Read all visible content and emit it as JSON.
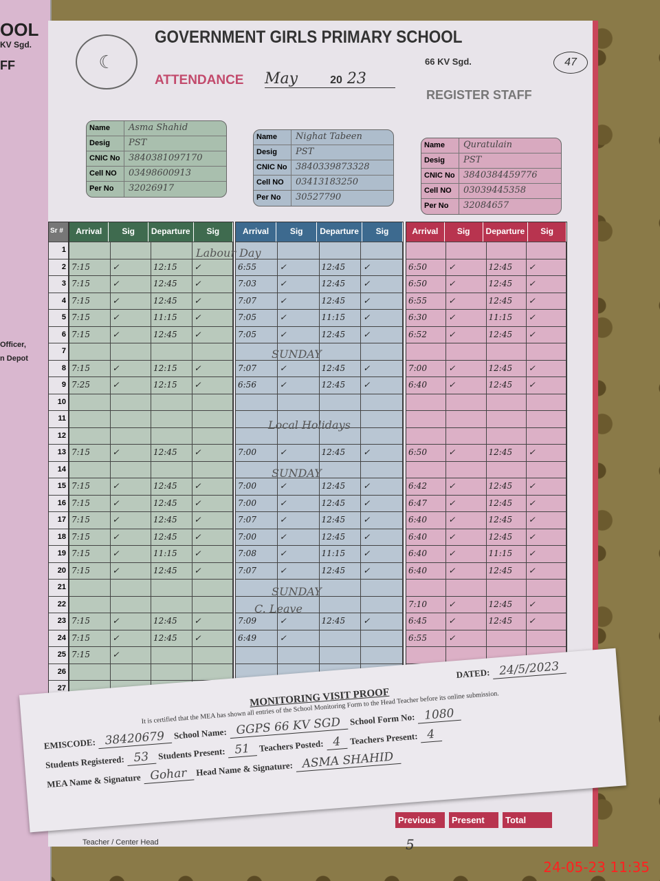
{
  "left_page": {
    "fragments": [
      "OOL",
      "KV Sgd.",
      "FF",
      "Officer,",
      "n Depot"
    ]
  },
  "header": {
    "title": "GOVERNMENT  GIRLS PRIMARY  SCHOOL",
    "subtitle": "66 KV Sgd.",
    "attendance_label": "ATTENDANCE",
    "month": "May",
    "year_prefix": "20",
    "year_suffix": "23",
    "register_label": "REGISTER STAFF",
    "page_number": "47"
  },
  "card_labels": [
    "Name",
    "Desig",
    "CNIC No",
    "Cell NO",
    "Per No"
  ],
  "staff": [
    {
      "name": "Asma Shahid",
      "desig": "PST",
      "cnic": "3840381097170",
      "cell": "03498600913",
      "per_no": "32026917",
      "color": "#a9bfae"
    },
    {
      "name": "Nighat Tabeen",
      "desig": "PST",
      "cnic": "3840339873328",
      "cell": "03413183250",
      "per_no": "30527790",
      "color": "#aebdcc"
    },
    {
      "name": "Quratulain",
      "desig": "PST",
      "cnic": "3840384459776",
      "cell": "03039445358",
      "per_no": "32084657",
      "color": "#d8a9bf"
    }
  ],
  "table": {
    "sr_header": "Sr #",
    "columns": [
      "Arrival",
      "Sig",
      "Departure",
      "Sig"
    ],
    "header_colors": [
      "#3f6b4f",
      "#3d6a8f",
      "#b8344f"
    ]
  },
  "attendance": [
    {
      "2": [
        "7:15",
        "12:15"
      ],
      "3": [
        "7:15",
        "12:45"
      ],
      "4": [
        "7:15",
        "12:45"
      ],
      "5": [
        "7:15",
        "11:15"
      ],
      "6": [
        "7:15",
        "12:45"
      ],
      "8": [
        "7:15",
        "12:15"
      ],
      "9": [
        "7:25",
        "12:15"
      ],
      "13": [
        "7:15",
        "12:45"
      ],
      "15": [
        "7:15",
        "12:45"
      ],
      "16": [
        "7:15",
        "12:45"
      ],
      "17": [
        "7:15",
        "12:45"
      ],
      "18": [
        "7:15",
        "12:45"
      ],
      "19": [
        "7:15",
        "11:15"
      ],
      "20": [
        "7:15",
        "12:45"
      ],
      "23": [
        "7:15",
        "12:45"
      ],
      "24": [
        "7:15",
        "12:45"
      ],
      "25": [
        "7:15",
        ""
      ]
    },
    {
      "2": [
        "6:55",
        "12:45"
      ],
      "3": [
        "7:03",
        "12:45"
      ],
      "4": [
        "7:07",
        "12:45"
      ],
      "5": [
        "7:05",
        "11:15"
      ],
      "6": [
        "7:05",
        "12:45"
      ],
      "8": [
        "7:07",
        "12:45"
      ],
      "9": [
        "6:56",
        "12:45"
      ],
      "13": [
        "7:00",
        "12:45"
      ],
      "15": [
        "7:00",
        "12:45"
      ],
      "16": [
        "7:00",
        "12:45"
      ],
      "17": [
        "7:07",
        "12:45"
      ],
      "18": [
        "7:00",
        "12:45"
      ],
      "19": [
        "7:08",
        "11:15"
      ],
      "20": [
        "7:07",
        "12:45"
      ],
      "23": [
        "7:09",
        "12:45"
      ],
      "24": [
        "6:49",
        ""
      ]
    },
    {
      "2": [
        "6:50",
        "12:45"
      ],
      "3": [
        "6:50",
        "12:45"
      ],
      "4": [
        "6:55",
        "12:45"
      ],
      "5": [
        "6:30",
        "11:15"
      ],
      "6": [
        "6:52",
        "12:45"
      ],
      "8": [
        "7:00",
        "12:45"
      ],
      "9": [
        "6:40",
        "12:45"
      ],
      "13": [
        "6:50",
        "12:45"
      ],
      "15": [
        "6:42",
        "12:45"
      ],
      "16": [
        "6:47",
        "12:45"
      ],
      "17": [
        "6:40",
        "12:45"
      ],
      "18": [
        "6:40",
        "12:45"
      ],
      "19": [
        "6:40",
        "11:15"
      ],
      "20": [
        "6:40",
        "12:45"
      ],
      "22": [
        "7:10",
        "12:45"
      ],
      "23": [
        "6:45",
        "12:45"
      ],
      "24": [
        "6:55",
        ""
      ]
    }
  ],
  "notes": {
    "labour_day": "Labour Day",
    "sunday": "SUNDAY",
    "local_holidays": "Local Holidays",
    "c_leave": "C. Leave"
  },
  "signature_mark": "✓",
  "footer": {
    "previous": "Previous",
    "present": "Present",
    "total": "Total",
    "previous_value": "5",
    "center_head": "Teacher / Center Head"
  },
  "slip": {
    "title": "MONITORING VISIT PROOF",
    "dated_label": "DATED:",
    "dated_value": "24/5/2023",
    "certify_text": "It is certified that the MEA has shown all entries of the School Monitoring Form to the Head Teacher before its online submission.",
    "emiscode_label": "EMISCODE:",
    "emiscode_value": "38420679",
    "school_name_label": "School Name:",
    "school_name_value": "GGPS 66 KV SGD",
    "form_no_label": "School Form No:",
    "form_no_value": "1080",
    "students_registered_label": "Students Registered:",
    "students_registered_value": "53",
    "students_present_label": "Students Present:",
    "students_present_value": "51",
    "teachers_posted_label": "Teachers Posted:",
    "teachers_posted_value": "4",
    "teachers_present_label": "Teachers Present:",
    "teachers_present_value": "4",
    "mea_label": "MEA Name & Signature",
    "mea_value": "Gohar",
    "head_label": "Head Name & Signature:",
    "head_value": "ASMA SHAHID"
  },
  "timestamp": "24-05-23  11:35"
}
